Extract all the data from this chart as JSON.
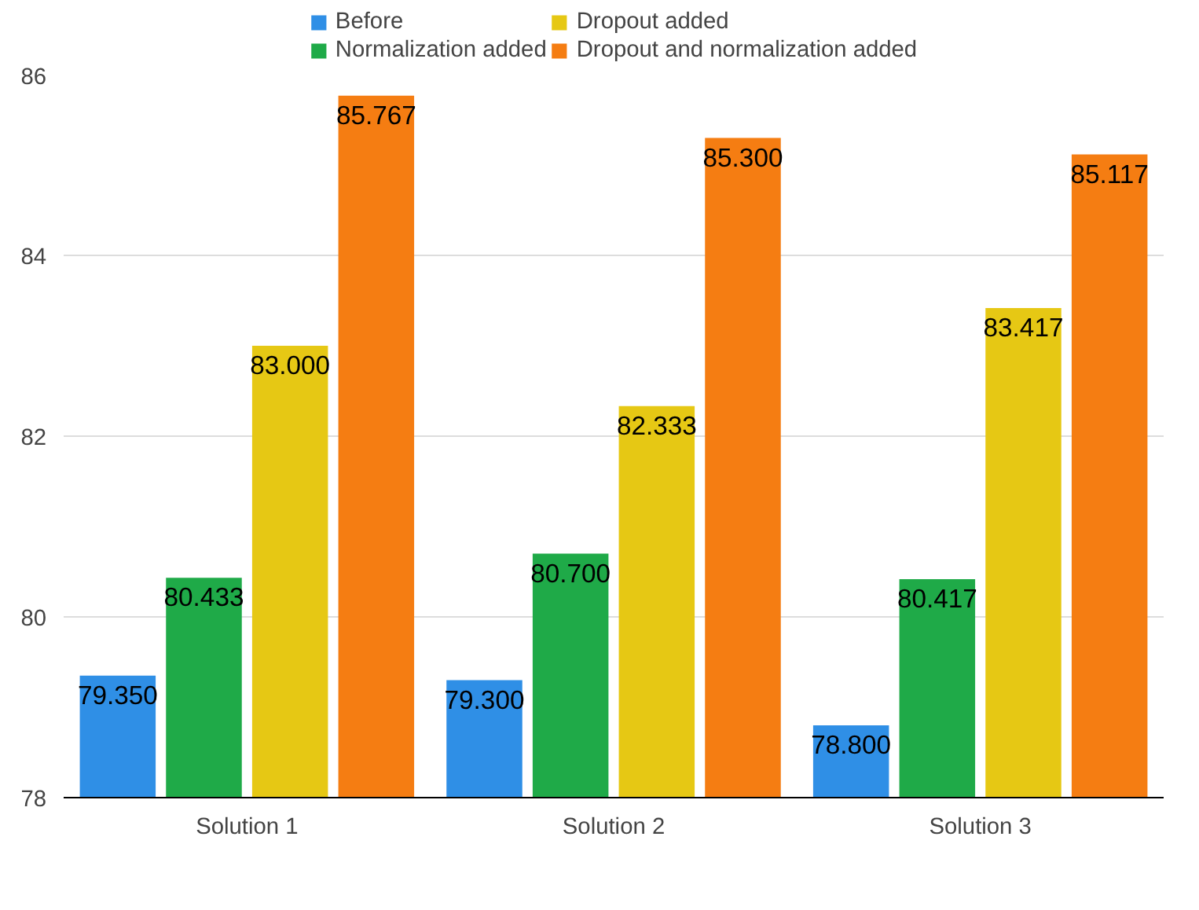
{
  "chart_data": {
    "type": "bar",
    "categories": [
      "Solution 1",
      "Solution 2",
      "Solution 3"
    ],
    "series": [
      {
        "name": "Before",
        "color": "#2f8fe6",
        "values": [
          79.35,
          79.3,
          78.8
        ],
        "value_labels": [
          "79.350",
          "79.300",
          "78.800"
        ]
      },
      {
        "name": "Normalization added",
        "color": "#1faa48",
        "values": [
          80.433,
          80.7,
          80.417
        ],
        "value_labels": [
          "80.433",
          "80.700",
          "80.417"
        ]
      },
      {
        "name": "Dropout added",
        "color": "#e6c814",
        "values": [
          83.0,
          82.333,
          83.417
        ],
        "value_labels": [
          "83.000",
          "82.333",
          "83.417"
        ]
      },
      {
        "name": "Dropout and normalization added",
        "color": "#f57d12",
        "values": [
          85.767,
          85.3,
          85.117
        ],
        "value_labels": [
          "85.767",
          "85.300",
          "85.117"
        ]
      }
    ],
    "ylim": [
      78,
      86
    ],
    "yticks": [
      78,
      80,
      82,
      84,
      86
    ],
    "grid": "y",
    "legend": "top"
  }
}
